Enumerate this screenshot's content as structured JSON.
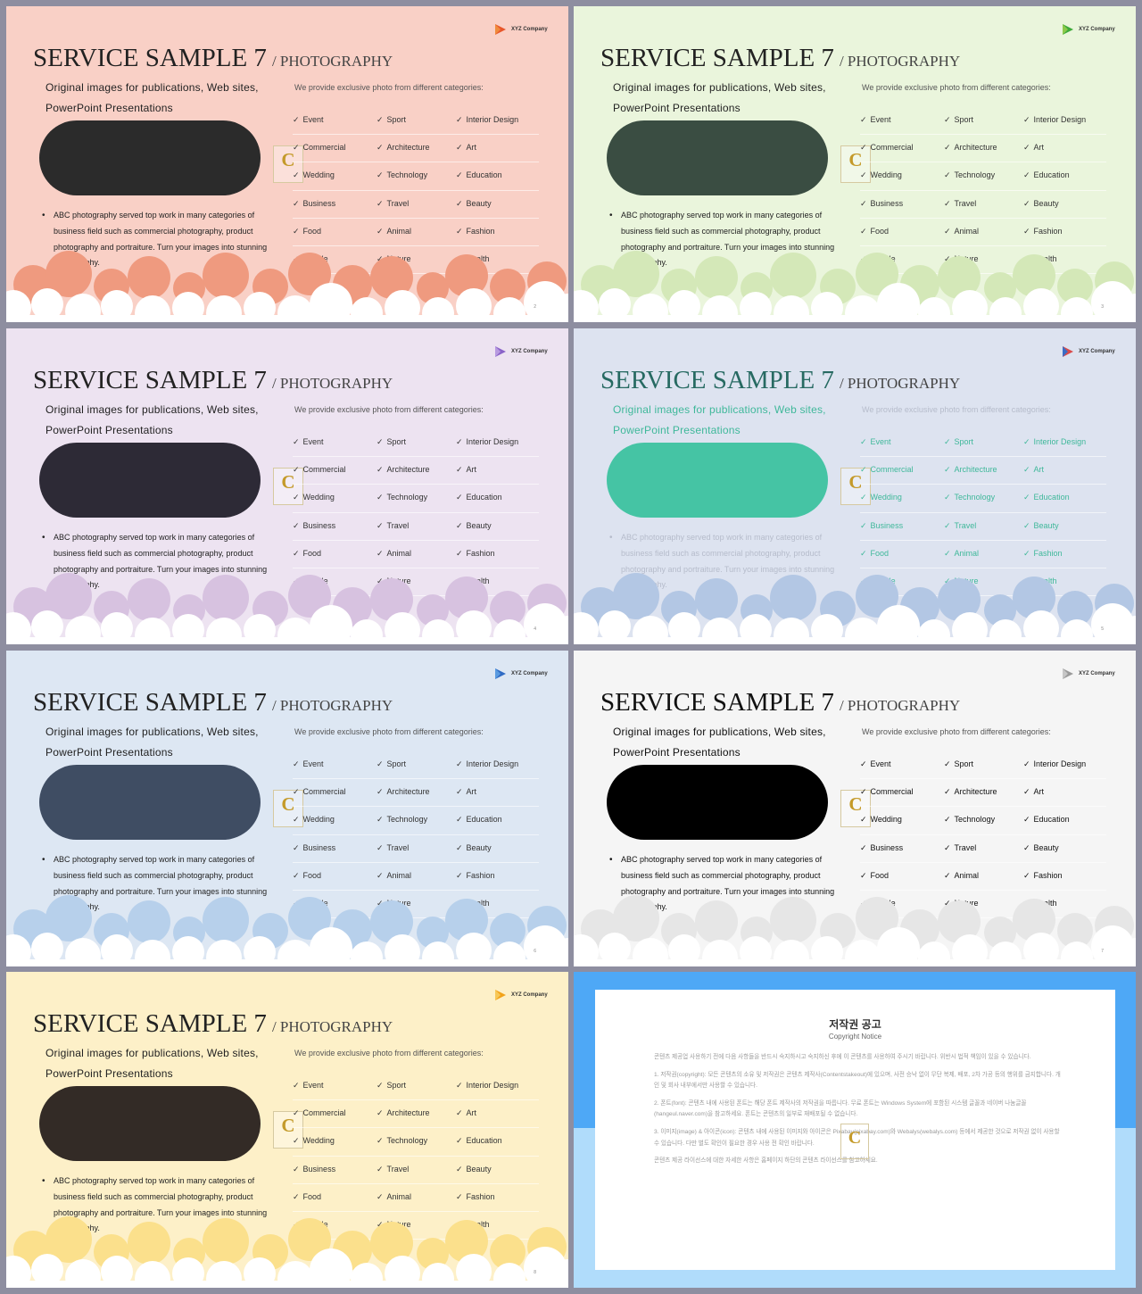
{
  "slides": [
    {
      "title": "SERVICE SAMPLE 7",
      "title_sub": "/ PHOTOGRAPHY",
      "subtitle_line1": "Original images for publications, Web sites,",
      "subtitle_line2": "PowerPoint Presentations",
      "intro": "We provide exclusive photo from different categories:",
      "bullet": "ABC photography served top work in many categories of business field such as commercial photography, product photography and portraiture. Turn your images into stunning photography.",
      "logo_text": "XYZ Company",
      "page": "2",
      "colors": {
        "bg": "#f9d0c6",
        "pill": "#2b2b2b",
        "cloud": "#ef9a7f",
        "title": "#222222",
        "text": "#222222",
        "intro": "#555555",
        "grid": "#333333",
        "logo1": "#e8562a",
        "logo2": "#f08a3c"
      }
    },
    {
      "title": "SERVICE SAMPLE 7",
      "title_sub": "/ PHOTOGRAPHY",
      "subtitle_line1": "Original images for publications, Web sites,",
      "subtitle_line2": "PowerPoint Presentations",
      "intro": "We provide exclusive photo from different categories:",
      "bullet": "ABC photography served top work in many categories of business field such as commercial photography, product photography and portraiture. Turn your images into stunning photography.",
      "logo_text": "XYZ Company",
      "page": "3",
      "colors": {
        "bg": "#eaf5dc",
        "pill": "#3a4d42",
        "cloud": "#d4e8b8",
        "title": "#222222",
        "text": "#222222",
        "intro": "#555555",
        "grid": "#333333",
        "logo1": "#3daa3a",
        "logo2": "#8cc84b"
      }
    },
    {
      "title": "SERVICE SAMPLE 7",
      "title_sub": "/ PHOTOGRAPHY",
      "subtitle_line1": "Original images for publications, Web sites,",
      "subtitle_line2": "PowerPoint Presentations",
      "intro": "We provide exclusive photo from different categories:",
      "bullet": "ABC photography served top work in many categories of business field such as commercial photography, product photography and portraiture. Turn your images into stunning photography.",
      "logo_text": "XYZ Company",
      "page": "4",
      "colors": {
        "bg": "#ede3f1",
        "pill": "#2d2a36",
        "cloud": "#d7c2e0",
        "title": "#222222",
        "text": "#222222",
        "intro": "#555555",
        "grid": "#333333",
        "logo1": "#8a63c8",
        "logo2": "#b89ae0"
      }
    },
    {
      "title": "SERVICE SAMPLE 7",
      "title_sub": "/ PHOTOGRAPHY",
      "subtitle_line1": "Original images for publications, Web sites,",
      "subtitle_line2": "PowerPoint Presentations",
      "intro": "We provide exclusive photo from different categories:",
      "bullet": "ABC photography served top work in many categories of business field such as commercial photography, product photography and portraiture. Turn your images into stunning photography.",
      "logo_text": "XYZ Company",
      "page": "5",
      "colors": {
        "bg": "#dde3f0",
        "pill": "#45c4a4",
        "cloud": "#b3c7e4",
        "title": "#276a62",
        "text": "#3fb89a",
        "intro": "#b6bccb",
        "grid": "#3fb89a",
        "logo1": "#d94a4a",
        "logo2": "#3b6cc4"
      }
    },
    {
      "title": "SERVICE SAMPLE 7",
      "title_sub": "/ PHOTOGRAPHY",
      "subtitle_line1": "Original images for publications, Web sites,",
      "subtitle_line2": "PowerPoint Presentations",
      "intro": "We provide exclusive photo from different categories:",
      "bullet": "ABC photography served top work in many categories of business field such as commercial photography, product photography and portraiture. Turn your images into stunning photography.",
      "logo_text": "XYZ Company",
      "page": "6",
      "colors": {
        "bg": "#dde7f3",
        "pill": "#3f4d63",
        "cloud": "#b7d0eb",
        "title": "#222222",
        "text": "#222222",
        "intro": "#555555",
        "grid": "#333333",
        "logo1": "#2f6bc4",
        "logo2": "#5a9be0"
      }
    },
    {
      "title": "SERVICE SAMPLE 7",
      "title_sub": "/ PHOTOGRAPHY",
      "subtitle_line1": "Original images for publications, Web sites,",
      "subtitle_line2": "PowerPoint Presentations",
      "intro": "We provide exclusive photo from different categories:",
      "bullet": "ABC photography served top work in many categories of business field such as commercial photography, product photography and portraiture. Turn your images into stunning photography.",
      "logo_text": "XYZ Company",
      "page": "7",
      "colors": {
        "bg": "#f5f5f5",
        "pill": "#000000",
        "cloud": "#e6e6e6",
        "title": "#111111",
        "text": "#111111",
        "intro": "#555555",
        "grid": "#111111",
        "logo1": "#9a9a9a",
        "logo2": "#c6c6c6"
      }
    },
    {
      "title": "SERVICE SAMPLE 7",
      "title_sub": "/ PHOTOGRAPHY",
      "subtitle_line1": "Original images for publications, Web sites,",
      "subtitle_line2": "PowerPoint Presentations",
      "intro": "We provide exclusive photo from different categories:",
      "bullet": "ABC photography served top work in many categories of business field such as commercial photography, product photography and portraiture. Turn your images into stunning photography.",
      "logo_text": "XYZ Company",
      "page": "8",
      "colors": {
        "bg": "#fdf0c8",
        "pill": "#332b26",
        "cloud": "#fbe08c",
        "title": "#222222",
        "text": "#222222",
        "intro": "#555555",
        "grid": "#333333",
        "logo1": "#f2a218",
        "logo2": "#f7c858"
      }
    }
  ],
  "categories": [
    [
      "Event",
      "Sport",
      "Interior Design"
    ],
    [
      "Commercial",
      "Architecture",
      "Art"
    ],
    [
      "Wedding",
      "Technology",
      "Education"
    ],
    [
      "Business",
      "Travel",
      "Beauty"
    ],
    [
      "Food",
      "Animal",
      "Fashion"
    ],
    [
      "People",
      "Nature",
      "Health"
    ]
  ],
  "copyright": {
    "title": "저작권 공고",
    "subtitle": "Copyright Notice",
    "paragraphs": [
      "콘텐츠 제공업 사용하기 전에 다음 사항들을 반드시 숙지하시고 숙지하신 후에 이 콘텐츠를 사용하여 주시기 바랍니다. 위반시 법적 책임이 있을 수 있습니다.",
      "1. 저작권(copyright): 모든 콘텐츠의 소유 및 저작권은 콘텐츠 제작사(Contentstakeout)에 있으며, 사전 승낙 없이 무단 복제, 배포, 2차 가공 등의 행위를 금지합니다. 개인 및 회사 내부에서만 사용할 수 있습니다.",
      "2. 폰트(font): 콘텐츠 내에 사용된 폰트는 해당 폰트 제작사의 저작권을 따릅니다. 무료 폰트는 Windows System에 포함된 시스템 글꼴과 네이버 나눔글꼴(hangeul.naver.com)을 참고하세요. 폰트는 콘텐츠의 일부로 재배포될 수 없습니다.",
      "3. 이미지(image) & 아이콘(icon): 콘텐츠 내에 사용된 이미지와 아이콘은 Pixabay(pixabay.com)와 Webalys(webalys.com) 등에서 제공한 것으로 저작권 없이 사용할 수 있습니다. 다만 별도 확인이 필요한 경우 사용 전 확인 바랍니다.",
      "콘텐츠 제공 라이선스에 대한 자세한 사항은 홈페이지 하단의 콘텐츠 라이선스를 참고하세요."
    ]
  }
}
